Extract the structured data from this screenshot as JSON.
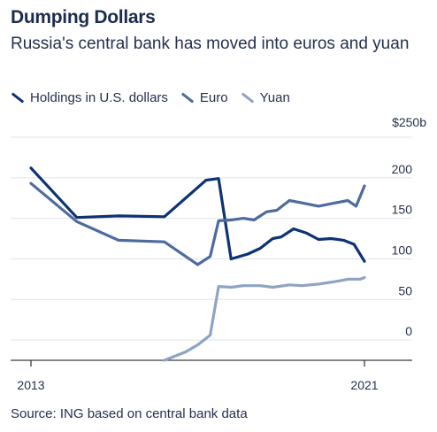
{
  "chart_data": {
    "type": "line",
    "title": "Dumping Dollars",
    "subtitle": "Russia's central bank has moved into euros and yuan",
    "y_unit_label": "$250b",
    "ylim": [
      -25,
      250
    ],
    "y_ticks": [
      0,
      50,
      100,
      150,
      200
    ],
    "xlim": [
      2013,
      2021.7
    ],
    "x_tick_labels": [
      {
        "x": 2013,
        "label": "2013"
      },
      {
        "x": 2021,
        "label": "2021"
      }
    ],
    "legend_position": "top-left",
    "grid": "horizontal",
    "series": [
      {
        "name": "Holdings in U.S. dollars",
        "color": "#0d3275",
        "points": [
          [
            2013.0,
            212
          ],
          [
            2014.1,
            151
          ],
          [
            2015.1,
            153
          ],
          [
            2016.2,
            152
          ],
          [
            2017.2,
            197
          ],
          [
            2017.5,
            199
          ],
          [
            2017.8,
            100
          ],
          [
            2018.2,
            106
          ],
          [
            2018.5,
            113
          ],
          [
            2018.8,
            125
          ],
          [
            2019.0,
            127
          ],
          [
            2019.3,
            137
          ],
          [
            2019.6,
            132
          ],
          [
            2019.9,
            124
          ],
          [
            2020.2,
            125
          ],
          [
            2020.5,
            123
          ],
          [
            2020.75,
            118
          ],
          [
            2021.0,
            97
          ]
        ]
      },
      {
        "name": "Euro",
        "color": "#4e6b9f",
        "points": [
          [
            2013.0,
            193
          ],
          [
            2014.1,
            146
          ],
          [
            2015.1,
            123
          ],
          [
            2016.2,
            121
          ],
          [
            2017.0,
            93
          ],
          [
            2017.3,
            103
          ],
          [
            2017.5,
            147
          ],
          [
            2017.8,
            148
          ],
          [
            2018.1,
            150
          ],
          [
            2018.35,
            148
          ],
          [
            2018.65,
            158
          ],
          [
            2018.9,
            160
          ],
          [
            2019.2,
            172
          ],
          [
            2019.5,
            169
          ],
          [
            2019.9,
            165
          ],
          [
            2020.3,
            169
          ],
          [
            2020.6,
            172
          ],
          [
            2020.8,
            165
          ],
          [
            2021.0,
            190
          ]
        ]
      },
      {
        "name": "Yuan",
        "color": "#8fa3c4",
        "points": [
          [
            2016.2,
            -25
          ],
          [
            2016.7,
            -15
          ],
          [
            2017.0,
            -6
          ],
          [
            2017.3,
            6
          ],
          [
            2017.5,
            66
          ],
          [
            2017.8,
            65
          ],
          [
            2018.1,
            67
          ],
          [
            2018.5,
            67
          ],
          [
            2018.8,
            65
          ],
          [
            2019.2,
            68
          ],
          [
            2019.5,
            67
          ],
          [
            2019.9,
            69
          ],
          [
            2020.3,
            72
          ],
          [
            2020.6,
            75
          ],
          [
            2020.9,
            75
          ],
          [
            2021.0,
            77
          ]
        ]
      }
    ]
  },
  "source": "Source: ING based on central bank data"
}
